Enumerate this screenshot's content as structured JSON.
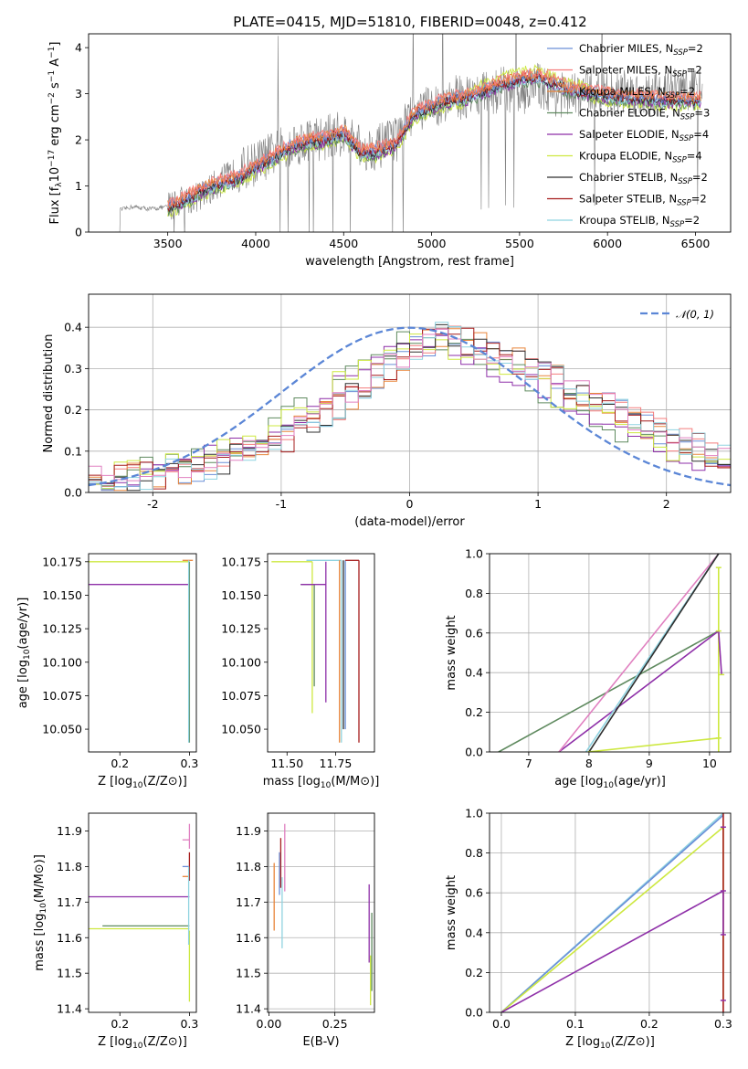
{
  "figure": {
    "title": "PLATE=0415, MJD=51810, FIBERID=0048, z=0.412"
  },
  "colors": {
    "Chabrier MILES": "#6a8fd8",
    "Salpeter MILES": "#f47c7c",
    "Kroupa MILES": "#e8853a",
    "Chabrier ELODIE": "#5f8a5f",
    "Salpeter ELODIE": "#8e2fa8",
    "Kroupa ELODIE": "#cde840",
    "Chabrier STELIB": "#2f2f2f",
    "Salpeter STELIB": "#a61c1c",
    "Kroupa STELIB": "#8fd3e0",
    "Extra": "#e080c0",
    "Normal": "#5b86d6",
    "Data": "#808080"
  },
  "chart_data": [
    {
      "id": "spectrum",
      "type": "line",
      "title": "PLATE=0415, MJD=51810, FIBERID=0048, z=0.412",
      "xlabel": "wavelength [Angstrom, rest frame]",
      "ylabel": "Flux [f_λ 10^-17 erg cm^-2 s^-1 A^-1]",
      "xlim": [
        3050,
        6700
      ],
      "ylim": [
        0,
        4.3
      ],
      "xticks": [
        3500,
        4000,
        4500,
        5000,
        5500,
        6000,
        6500
      ],
      "yticks": [
        0,
        1,
        2,
        3,
        4
      ],
      "legend_position": "top-right",
      "legend": [
        {
          "label": "Chabrier MILES, N",
          "sub": "SSP",
          "suffix": "=2",
          "color_key": "Chabrier MILES"
        },
        {
          "label": "Salpeter MILES, N",
          "sub": "SSP",
          "suffix": "=2",
          "color_key": "Salpeter MILES"
        },
        {
          "label": "Kroupa MILES, N",
          "sub": "SSP",
          "suffix": "=2",
          "color_key": "Kroupa MILES"
        },
        {
          "label": "Chabrier ELODIE, N",
          "sub": "SSP",
          "suffix": "=3",
          "color_key": "Chabrier ELODIE"
        },
        {
          "label": "Salpeter ELODIE, N",
          "sub": "SSP",
          "suffix": "=4",
          "color_key": "Salpeter ELODIE"
        },
        {
          "label": "Kroupa ELODIE, N",
          "sub": "SSP",
          "suffix": "=4",
          "color_key": "Kroupa ELODIE"
        },
        {
          "label": "Chabrier STELIB, N",
          "sub": "SSP",
          "suffix": "=2",
          "color_key": "Chabrier STELIB"
        },
        {
          "label": "Salpeter STELIB, N",
          "sub": "SSP",
          "suffix": "=2",
          "color_key": "Salpeter STELIB"
        },
        {
          "label": "Kroupa STELIB, N",
          "sub": "SSP",
          "suffix": "=2",
          "color_key": "Kroupa STELIB"
        }
      ],
      "observed_trend": {
        "x": [
          3200,
          3300,
          3400,
          3500,
          3600,
          3700,
          3800,
          3900,
          4000,
          4100,
          4200,
          4300,
          4400,
          4500,
          4600,
          4700,
          4800,
          4900,
          5000,
          5100,
          5200,
          5300,
          5400,
          5500,
          5600,
          5700,
          5800,
          5900,
          6000,
          6100,
          6200,
          6300,
          6400,
          6500
        ],
        "y": [
          0.45,
          0.55,
          0.5,
          0.55,
          0.7,
          0.8,
          1.1,
          1.3,
          1.5,
          1.7,
          1.9,
          2.0,
          2.05,
          2.15,
          1.8,
          1.85,
          2.0,
          2.6,
          2.7,
          2.9,
          2.95,
          3.0,
          3.1,
          3.0,
          3.2,
          3.0,
          2.95,
          3.1,
          3.0,
          3.05,
          3.0,
          3.1,
          3.1,
          3.1
        ]
      },
      "model_trend": {
        "x": [
          3500,
          3600,
          3700,
          3800,
          3900,
          4000,
          4100,
          4200,
          4300,
          4400,
          4500,
          4600,
          4700,
          4800,
          4900,
          5000,
          5100,
          5200,
          5300,
          5400,
          5500,
          5600,
          5700,
          5800,
          5900,
          6000,
          6100,
          6200,
          6300,
          6400,
          6500
        ],
        "y": [
          0.5,
          0.7,
          0.9,
          1.05,
          1.15,
          1.4,
          1.6,
          1.85,
          1.95,
          2.0,
          2.15,
          1.7,
          1.75,
          1.9,
          2.55,
          2.7,
          2.85,
          2.9,
          3.05,
          3.2,
          3.3,
          3.35,
          3.2,
          3.05,
          3.0,
          2.95,
          2.9,
          2.9,
          2.85,
          2.85,
          2.85
        ]
      }
    },
    {
      "id": "residuals",
      "type": "line",
      "xlabel": "(data-model)/error",
      "ylabel": "Normed distribution",
      "xlim": [
        -2.5,
        2.5
      ],
      "ylim": [
        0,
        0.48
      ],
      "xticks": [
        -2,
        -1,
        0,
        1,
        2
      ],
      "yticks": [
        0.0,
        0.1,
        0.2,
        0.3,
        0.4
      ],
      "grid": true,
      "legend_position": "top-right",
      "legend": [
        {
          "label": "𝒩(0, 1)",
          "color_key": "Normal"
        }
      ],
      "bin_width": 0.1,
      "histogram_envelope": {
        "x": [
          -2.5,
          -2.0,
          -1.5,
          -1.0,
          -0.5,
          0.0,
          0.25,
          0.5,
          1.0,
          1.5,
          2.0,
          2.5
        ],
        "y": [
          0.03,
          0.04,
          0.07,
          0.12,
          0.22,
          0.34,
          0.38,
          0.36,
          0.3,
          0.22,
          0.14,
          0.08
        ]
      },
      "normal_curve": {
        "mean": 0,
        "sigma": 1
      }
    },
    {
      "id": "age-vs-Z",
      "type": "line",
      "xlabel": "Z [log10(Z/Z⊙)]",
      "ylabel": "age [log10(age/yr)]",
      "xlim": [
        0.155,
        0.31
      ],
      "ylim": [
        10.033,
        10.181
      ],
      "xticks": [
        0.2,
        0.3
      ],
      "yticks": [
        10.05,
        10.075,
        10.1,
        10.125,
        10.15,
        10.175
      ],
      "grid": false,
      "segments": [
        {
          "color_key": "Kroupa ELODIE",
          "x": [
            0.155,
            0.3
          ],
          "y": [
            10.175,
            10.175
          ]
        },
        {
          "color_key": "Salpeter ELODIE",
          "x": [
            0.155,
            0.3
          ],
          "y": [
            10.158,
            10.158
          ]
        },
        {
          "color_key": "Chabrier ELODIE",
          "x": [
            0.3,
            0.3
          ],
          "y": [
            10.175,
            10.04
          ]
        },
        {
          "color_key": "Kroupa MILES",
          "x": [
            0.29,
            0.305
          ],
          "y": [
            10.176,
            10.176
          ]
        },
        {
          "color_key": "Kroupa STELIB",
          "x": [
            0.299,
            0.299
          ],
          "y": [
            10.176,
            10.04
          ]
        }
      ]
    },
    {
      "id": "age-vs-mass",
      "type": "line",
      "xlabel": "mass [log10(M/M⊙)]",
      "xlim": [
        11.4,
        11.95
      ],
      "ylim": [
        10.033,
        10.181
      ],
      "xticks": [
        11.5,
        11.75
      ],
      "yticks": [
        10.05,
        10.075,
        10.1,
        10.125,
        10.15,
        10.175
      ],
      "grid": false,
      "segments": [
        {
          "color_key": "Kroupa ELODIE",
          "x": [
            11.42,
            11.63
          ],
          "y": [
            10.175,
            10.175
          ]
        },
        {
          "color_key": "Kroupa ELODIE",
          "x": [
            11.63,
            11.63
          ],
          "y": [
            10.175,
            10.062
          ]
        },
        {
          "color_key": "Chabrier ELODIE",
          "x": [
            11.57,
            11.64
          ],
          "y": [
            10.158,
            10.158
          ]
        },
        {
          "color_key": "Chabrier ELODIE",
          "x": [
            11.64,
            11.64
          ],
          "y": [
            10.158,
            10.082
          ]
        },
        {
          "color_key": "Salpeter ELODIE",
          "x": [
            11.57,
            11.7
          ],
          "y": [
            10.158,
            10.158
          ]
        },
        {
          "color_key": "Salpeter ELODIE",
          "x": [
            11.7,
            11.7
          ],
          "y": [
            10.175,
            10.07
          ]
        },
        {
          "color_key": "Kroupa STELIB",
          "x": [
            11.6,
            11.78
          ],
          "y": [
            10.176,
            10.176
          ]
        },
        {
          "color_key": "Kroupa STELIB",
          "x": [
            11.78,
            11.78
          ],
          "y": [
            10.176,
            10.04
          ]
        },
        {
          "color_key": "Kroupa MILES",
          "x": [
            11.77,
            11.77
          ],
          "y": [
            10.176,
            10.04
          ]
        },
        {
          "color_key": "Chabrier MILES",
          "x": [
            11.8,
            11.8
          ],
          "y": [
            10.176,
            10.05
          ]
        },
        {
          "color_key": "Chabrier STELIB",
          "x": [
            11.79,
            11.79
          ],
          "y": [
            10.176,
            10.05
          ]
        },
        {
          "color_key": "Salpeter STELIB",
          "x": [
            11.87,
            11.87
          ],
          "y": [
            10.176,
            10.04
          ]
        },
        {
          "color_key": "Salpeter STELIB",
          "x": [
            11.8,
            11.87
          ],
          "y": [
            10.176,
            10.176
          ]
        }
      ]
    },
    {
      "id": "massweight-vs-age",
      "type": "line",
      "xlabel": "age [log10(age/yr)]",
      "ylabel": "mass weight",
      "xlim": [
        6.35,
        10.35
      ],
      "ylim": [
        0,
        1
      ],
      "xticks": [
        7,
        8,
        9,
        10
      ],
      "yticks": [
        0.0,
        0.2,
        0.4,
        0.6,
        0.8,
        1.0
      ],
      "grid": true,
      "lines": [
        {
          "color_key": "Chabrier ELODIE",
          "x": [
            6.5,
            10.15
          ],
          "y": [
            0,
            0.61
          ]
        },
        {
          "color_key": "Salpeter ELODIE",
          "x": [
            7.5,
            10.15
          ],
          "y": [
            0,
            0.61
          ]
        },
        {
          "color_key": "Extra",
          "x": [
            7.5,
            10.15
          ],
          "y": [
            0,
            1.0
          ]
        },
        {
          "color_key": "Kroupa STELIB",
          "x": [
            7.95,
            10.15
          ],
          "y": [
            0,
            1.0
          ]
        },
        {
          "color_key": "Chabrier STELIB",
          "x": [
            8.0,
            10.15
          ],
          "y": [
            0,
            1.0
          ]
        },
        {
          "color_key": "Kroupa ELODIE",
          "x": [
            7.98,
            10.15
          ],
          "y": [
            0,
            0.07
          ]
        },
        {
          "color_key": "Kroupa ELODIE",
          "x": [
            10.15,
            10.15
          ],
          "y": [
            0,
            0.93
          ]
        },
        {
          "color_key": "Salpeter ELODIE",
          "x": [
            10.15,
            10.2
          ],
          "y": [
            0.61,
            0.39
          ]
        }
      ]
    },
    {
      "id": "mass-vs-Z",
      "type": "line",
      "xlabel": "Z [log10(Z/Z⊙)]",
      "ylabel": "mass [log10(M/M⊙)]",
      "xlim": [
        0.155,
        0.31
      ],
      "ylim": [
        11.39,
        11.95
      ],
      "xticks": [
        0.2,
        0.3
      ],
      "yticks": [
        11.4,
        11.5,
        11.6,
        11.7,
        11.8,
        11.9
      ],
      "grid": false,
      "segments": [
        {
          "color_key": "Salpeter ELODIE",
          "x": [
            0.155,
            0.3
          ],
          "y": [
            11.715,
            11.715
          ]
        },
        {
          "color_key": "Chabrier ELODIE",
          "x": [
            0.175,
            0.3
          ],
          "y": [
            11.633,
            11.633
          ]
        },
        {
          "color_key": "Kroupa ELODIE",
          "x": [
            0.155,
            0.3
          ],
          "y": [
            11.625,
            11.625
          ]
        },
        {
          "color_key": "Kroupa ELODIE",
          "x": [
            0.3,
            0.3
          ],
          "y": [
            11.62,
            11.42
          ]
        },
        {
          "color_key": "Kroupa MILES",
          "x": [
            0.29,
            0.3
          ],
          "y": [
            11.772,
            11.772
          ]
        },
        {
          "color_key": "Chabrier MILES",
          "x": [
            0.29,
            0.3
          ],
          "y": [
            11.8,
            11.8
          ]
        },
        {
          "color_key": "Extra",
          "x": [
            0.29,
            0.3
          ],
          "y": [
            11.875,
            11.875
          ]
        },
        {
          "color_key": "Extra",
          "x": [
            0.3,
            0.3
          ],
          "y": [
            11.92,
            11.85
          ]
        },
        {
          "color_key": "Salpeter STELIB",
          "x": [
            0.3,
            0.3
          ],
          "y": [
            11.84,
            11.76
          ]
        },
        {
          "color_key": "Kroupa STELIB",
          "x": [
            0.299,
            0.299
          ],
          "y": [
            11.8,
            11.58
          ]
        }
      ]
    },
    {
      "id": "mass-vs-ebv",
      "type": "line",
      "xlabel": "E(B-V)",
      "xlim": [
        -0.005,
        0.4
      ],
      "ylim": [
        11.39,
        11.95
      ],
      "xticks": [
        0.0,
        0.25
      ],
      "yticks": [
        11.4,
        11.5,
        11.6,
        11.7,
        11.8,
        11.9
      ],
      "grid": true,
      "segments": [
        {
          "color_key": "Kroupa MILES",
          "x": [
            0.02,
            0.02
          ],
          "y": [
            11.81,
            11.62
          ]
        },
        {
          "color_key": "Chabrier MILES",
          "x": [
            0.04,
            0.04
          ],
          "y": [
            11.84,
            11.72
          ]
        },
        {
          "color_key": "Salpeter STELIB",
          "x": [
            0.045,
            0.045
          ],
          "y": [
            11.88,
            11.74
          ]
        },
        {
          "color_key": "Kroupa STELIB",
          "x": [
            0.05,
            0.05
          ],
          "y": [
            11.77,
            11.57
          ]
        },
        {
          "color_key": "Extra",
          "x": [
            0.06,
            0.06
          ],
          "y": [
            11.92,
            11.73
          ]
        },
        {
          "color_key": "Salpeter ELODIE",
          "x": [
            0.38,
            0.38
          ],
          "y": [
            11.75,
            11.53
          ]
        },
        {
          "color_key": "Kroupa ELODIE",
          "x": [
            0.385,
            0.385
          ],
          "y": [
            11.55,
            11.41
          ]
        },
        {
          "color_key": "Chabrier ELODIE",
          "x": [
            0.39,
            0.39
          ],
          "y": [
            11.67,
            11.45
          ]
        }
      ]
    },
    {
      "id": "massweight-vs-Z",
      "type": "line",
      "xlabel": "Z [log10(Z/Z⊙)]",
      "ylabel": "mass weight",
      "xlim": [
        -0.016,
        0.31
      ],
      "ylim": [
        0,
        1
      ],
      "xticks": [
        0.0,
        0.1,
        0.2,
        0.3
      ],
      "yticks": [
        0.0,
        0.2,
        0.4,
        0.6,
        0.8,
        1.0
      ],
      "grid": true,
      "lines": [
        {
          "color_key": "Kroupa STELIB",
          "x": [
            0.0,
            0.3
          ],
          "y": [
            0,
            1.0
          ]
        },
        {
          "color_key": "Chabrier MILES",
          "x": [
            0.0,
            0.3
          ],
          "y": [
            0,
            0.99
          ]
        },
        {
          "color_key": "Kroupa ELODIE",
          "x": [
            0.0,
            0.3
          ],
          "y": [
            0,
            0.93
          ]
        },
        {
          "color_key": "Salpeter ELODIE",
          "x": [
            0.0,
            0.3
          ],
          "y": [
            0,
            0.61
          ]
        },
        {
          "color_key": "Kroupa ELODIE",
          "x": [
            0.3,
            0.3
          ],
          "y": [
            0.93,
            0.06
          ]
        },
        {
          "color_key": "Salpeter STELIB",
          "x": [
            0.3,
            0.3
          ],
          "y": [
            1.0,
            0.0
          ]
        },
        {
          "color_key": "Salpeter ELODIE",
          "x": [
            0.3,
            0.3
          ],
          "y": [
            0.61,
            0.39
          ]
        }
      ]
    }
  ]
}
